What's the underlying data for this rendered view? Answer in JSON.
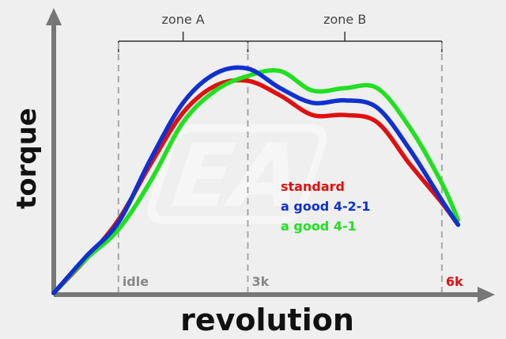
{
  "chart_data": {
    "type": "line",
    "xlabel": "revolution",
    "ylabel": "torque",
    "x_ticks": [
      {
        "label": "idle",
        "x": 1,
        "color": "#888888"
      },
      {
        "label": "3k",
        "x": 3,
        "color": "#888888"
      },
      {
        "label": "6k",
        "x": 6,
        "color": "#e01010"
      }
    ],
    "xlim": [
      0,
      6.6
    ],
    "ylim": [
      0,
      100
    ],
    "zones": [
      {
        "label": "zone A",
        "from": 1,
        "to": 3
      },
      {
        "label": "zone B",
        "from": 3,
        "to": 6
      }
    ],
    "legend_position": "center-right",
    "watermark": "EA",
    "series": [
      {
        "name": "standard",
        "color": "#e01010",
        "points": [
          [
            0,
            0
          ],
          [
            0.5,
            14
          ],
          [
            1,
            30
          ],
          [
            1.5,
            53
          ],
          [
            2,
            74
          ],
          [
            2.5,
            85
          ],
          [
            3,
            87
          ],
          [
            3.5,
            81
          ],
          [
            4,
            73
          ],
          [
            4.5,
            73
          ],
          [
            5,
            70
          ],
          [
            5.5,
            53
          ],
          [
            6,
            37
          ],
          [
            6.25,
            28
          ]
        ]
      },
      {
        "name": "a good 4-2-1",
        "color": "#1030d0",
        "points": [
          [
            0,
            0
          ],
          [
            0.5,
            15
          ],
          [
            1,
            29
          ],
          [
            1.5,
            55
          ],
          [
            2,
            78
          ],
          [
            2.5,
            90
          ],
          [
            3,
            92
          ],
          [
            3.5,
            84
          ],
          [
            4,
            78
          ],
          [
            4.5,
            79
          ],
          [
            5,
            76
          ],
          [
            5.5,
            59
          ],
          [
            6,
            38
          ],
          [
            6.25,
            28
          ]
        ]
      },
      {
        "name": "a good 4-1",
        "color": "#20e020",
        "points": [
          [
            0,
            0
          ],
          [
            0.5,
            14
          ],
          [
            1,
            26
          ],
          [
            1.5,
            46
          ],
          [
            2,
            70
          ],
          [
            2.5,
            83
          ],
          [
            3,
            89
          ],
          [
            3.5,
            91
          ],
          [
            4,
            83
          ],
          [
            4.5,
            84
          ],
          [
            5,
            84
          ],
          [
            5.5,
            68
          ],
          [
            6,
            45
          ],
          [
            6.25,
            30
          ]
        ]
      }
    ]
  }
}
